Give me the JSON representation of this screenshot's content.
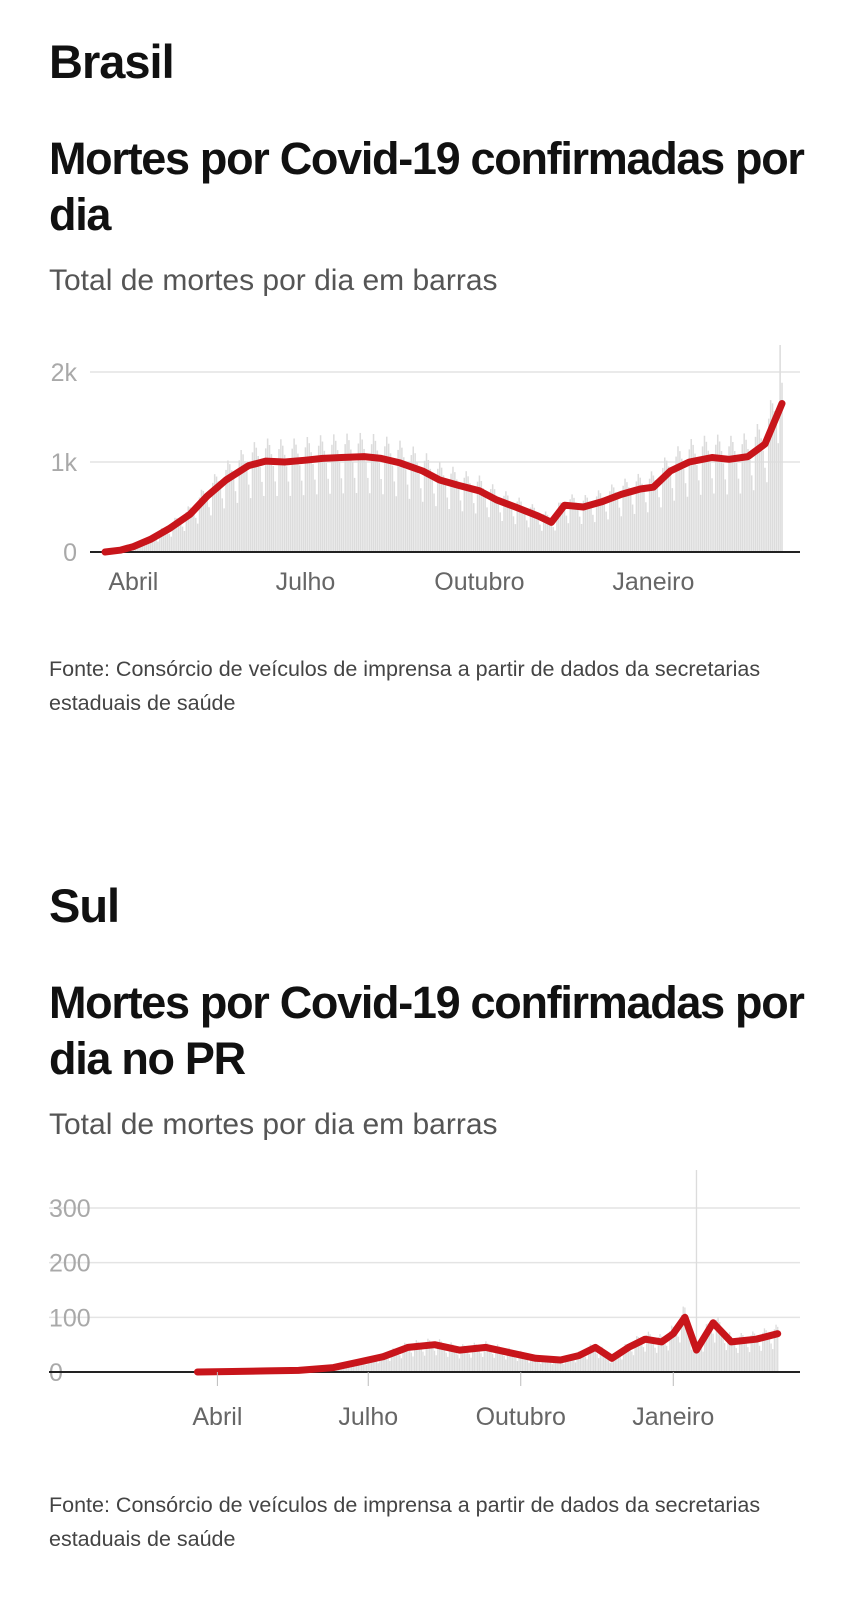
{
  "sections": [
    {
      "region": "Brasil",
      "title": "Mortes por Covid-19 confirmadas por dia",
      "subtitle": "Total de mortes por dia em barras",
      "source": "Fonte: Consórcio de veículos de imprensa a partir de dados da secretarias estaduais de saúde"
    },
    {
      "region": "Sul",
      "title": "Mortes por Covid-19 confirmadas por dia no PR",
      "subtitle": "Total de mortes por dia em barras",
      "source": "Fonte: Consórcio de veículos de imprensa a partir de dados da secretarias estaduais de saúde"
    }
  ],
  "colors": {
    "average_line": "#c8151b",
    "bars": "#dcdcdc",
    "grid": "#e4e4e4",
    "axis": "#222222"
  },
  "chart_data": [
    {
      "type": "bar",
      "overlay": "line",
      "title": "Mortes por Covid-19 confirmadas por dia",
      "subtitle": "Total de mortes por dia em barras",
      "xlabel": "",
      "ylabel": "",
      "y_ticks": [
        0,
        1000,
        2000
      ],
      "y_tick_labels": [
        "0",
        "1k",
        "2k"
      ],
      "ylim": [
        0,
        2000
      ],
      "xlim": [
        "2020-03-17",
        "2021-03-10"
      ],
      "x_ticks": [
        "2020-04-01",
        "2020-07-01",
        "2020-10-01",
        "2021-01-01"
      ],
      "x_tick_labels": [
        "Abril",
        "Julho",
        "Outubro",
        "Janeiro"
      ],
      "grid": true,
      "moving_average": [
        [
          "2020-03-17",
          0
        ],
        [
          "2020-03-25",
          20
        ],
        [
          "2020-04-01",
          60
        ],
        [
          "2020-04-10",
          140
        ],
        [
          "2020-04-20",
          260
        ],
        [
          "2020-05-01",
          420
        ],
        [
          "2020-05-10",
          620
        ],
        [
          "2020-05-20",
          800
        ],
        [
          "2020-06-01",
          960
        ],
        [
          "2020-06-10",
          1010
        ],
        [
          "2020-06-20",
          1000
        ],
        [
          "2020-07-01",
          1020
        ],
        [
          "2020-07-10",
          1040
        ],
        [
          "2020-07-20",
          1050
        ],
        [
          "2020-08-01",
          1060
        ],
        [
          "2020-08-10",
          1040
        ],
        [
          "2020-08-20",
          990
        ],
        [
          "2020-09-01",
          900
        ],
        [
          "2020-09-10",
          800
        ],
        [
          "2020-09-20",
          740
        ],
        [
          "2020-10-01",
          680
        ],
        [
          "2020-10-10",
          580
        ],
        [
          "2020-10-20",
          500
        ],
        [
          "2020-11-01",
          400
        ],
        [
          "2020-11-08",
          330
        ],
        [
          "2020-11-15",
          520
        ],
        [
          "2020-11-25",
          500
        ],
        [
          "2020-12-05",
          560
        ],
        [
          "2020-12-15",
          640
        ],
        [
          "2020-12-25",
          700
        ],
        [
          "2021-01-01",
          720
        ],
        [
          "2021-01-10",
          900
        ],
        [
          "2021-01-20",
          1000
        ],
        [
          "2021-02-01",
          1050
        ],
        [
          "2021-02-10",
          1030
        ],
        [
          "2021-02-20",
          1060
        ],
        [
          "2021-03-01",
          1200
        ],
        [
          "2021-03-10",
          1650
        ]
      ],
      "daily_peak": [
        "2021-03-09",
        2300
      ]
    },
    {
      "type": "bar",
      "overlay": "line",
      "title": "Mortes por Covid-19 confirmadas por dia no PR",
      "subtitle": "Total de mortes por dia em barras",
      "xlabel": "",
      "ylabel": "",
      "y_ticks": [
        0,
        100,
        200,
        300
      ],
      "y_tick_labels": [
        "0",
        "100",
        "200",
        "300"
      ],
      "ylim": [
        0,
        300
      ],
      "xlim": [
        "2020-03-01",
        "2021-03-10"
      ],
      "x_ticks": [
        "2020-04-01",
        "2020-07-01",
        "2020-10-01",
        "2021-01-01"
      ],
      "x_tick_labels": [
        "Abril",
        "Julho",
        "Outubro",
        "Janeiro"
      ],
      "grid": true,
      "moving_average": [
        [
          "2020-03-20",
          0
        ],
        [
          "2020-04-10",
          1
        ],
        [
          "2020-05-01",
          2
        ],
        [
          "2020-05-20",
          3
        ],
        [
          "2020-06-10",
          8
        ],
        [
          "2020-06-25",
          18
        ],
        [
          "2020-07-10",
          28
        ],
        [
          "2020-07-25",
          45
        ],
        [
          "2020-08-10",
          50
        ],
        [
          "2020-08-25",
          40
        ],
        [
          "2020-09-10",
          45
        ],
        [
          "2020-09-25",
          35
        ],
        [
          "2020-10-10",
          25
        ],
        [
          "2020-10-25",
          22
        ],
        [
          "2020-11-05",
          30
        ],
        [
          "2020-11-15",
          45
        ],
        [
          "2020-11-25",
          25
        ],
        [
          "2020-12-05",
          45
        ],
        [
          "2020-12-15",
          60
        ],
        [
          "2020-12-25",
          55
        ],
        [
          "2021-01-01",
          70
        ],
        [
          "2021-01-08",
          100
        ],
        [
          "2021-01-15",
          40
        ],
        [
          "2021-01-25",
          90
        ],
        [
          "2021-02-05",
          55
        ],
        [
          "2021-02-20",
          60
        ],
        [
          "2021-03-05",
          70
        ]
      ],
      "daily_peak": [
        "2021-01-15",
        380
      ]
    }
  ]
}
